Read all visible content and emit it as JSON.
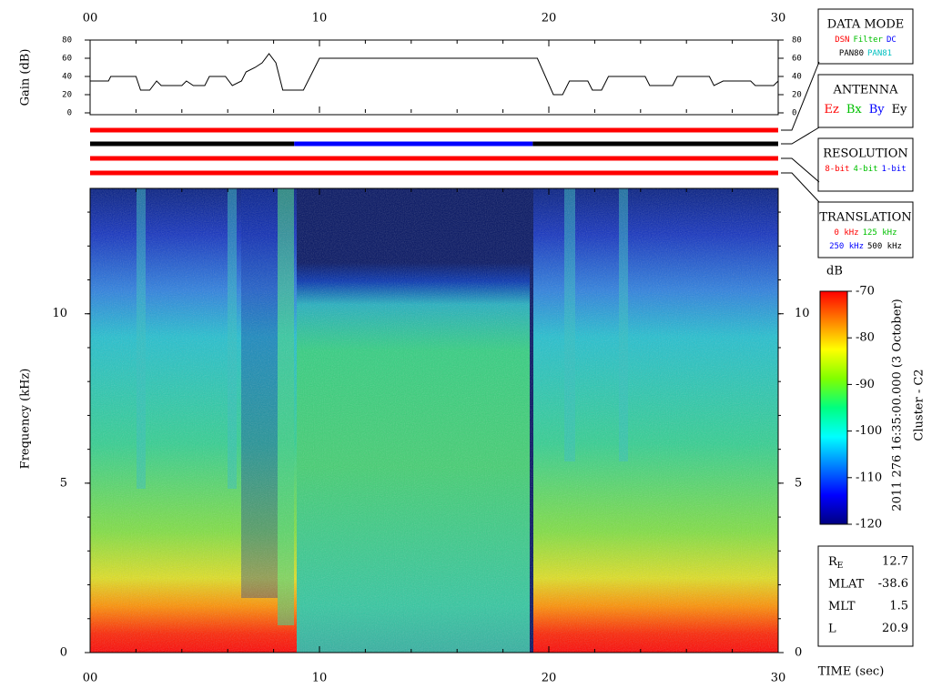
{
  "chart_data": [
    {
      "type": "line",
      "y_label": "Gain (dB)",
      "x": [
        0,
        0.8,
        0.9,
        2.0,
        2.2,
        2.6,
        2.9,
        3.1,
        4.0,
        4.2,
        4.5,
        5.0,
        5.2,
        5.9,
        6.2,
        6.6,
        6.8,
        7.2,
        7.5,
        7.8,
        8.1,
        8.4,
        9.3,
        10.0,
        19.5,
        20.2,
        20.6,
        20.9,
        21.7,
        21.9,
        22.3,
        22.6,
        24.2,
        24.4,
        25.4,
        25.6,
        27.0,
        27.2,
        27.6,
        28.8,
        29.0,
        29.8,
        30.0
      ],
      "series": [
        {
          "color": "#000000",
          "values": [
            35,
            35,
            40,
            40,
            25,
            25,
            35,
            30,
            30,
            35,
            30,
            30,
            40,
            40,
            30,
            35,
            45,
            50,
            55,
            65,
            55,
            25,
            25,
            60,
            60,
            20,
            20,
            35,
            35,
            25,
            25,
            40,
            40,
            30,
            30,
            40,
            40,
            30,
            35,
            35,
            30,
            30,
            35
          ]
        }
      ],
      "xlim": [
        0,
        30
      ],
      "xticks": [
        {
          "value": 0,
          "label": "00"
        },
        10,
        20,
        30
      ],
      "x_minor_step": 2,
      "ylim": [
        0,
        80
      ],
      "yticks": [
        0,
        20,
        40,
        60,
        80
      ]
    },
    {
      "type": "timeline",
      "xlim": [
        0,
        30
      ],
      "bars": [
        {
          "segments": [
            {
              "start": 0,
              "end": 30,
              "color": "#ff0000"
            }
          ]
        },
        {
          "segments": [
            {
              "start": 0,
              "end": 8.9,
              "color": "#000000"
            },
            {
              "start": 8.9,
              "end": 19.3,
              "color": "#0000ff"
            },
            {
              "start": 19.3,
              "end": 30,
              "color": "#000000"
            }
          ]
        },
        {
          "segments": [
            {
              "start": 0,
              "end": 30,
              "color": "#ff0000"
            }
          ]
        },
        {
          "segments": [
            {
              "start": 0,
              "end": 30,
              "color": "#ff0000"
            }
          ]
        }
      ]
    },
    {
      "type": "spectrogram",
      "y_label": "Frequency (kHz)",
      "x_label": "TIME (sec)",
      "xlim": [
        0,
        30
      ],
      "xticks": [
        {
          "value": 0,
          "label": "00"
        },
        10,
        20,
        30
      ],
      "x_minor_step": 2,
      "ylim": [
        0,
        13.7
      ],
      "yticks": [
        0,
        5,
        10
      ],
      "y_minor_step": 1,
      "colorbar": {
        "label": "dB",
        "lim": [
          -120,
          -70
        ],
        "ticks": [
          -70,
          -80,
          -90,
          -100,
          -110,
          -120
        ],
        "colors": [
          "#000080",
          "#0000ff",
          "#0080ff",
          "#00ffff",
          "#00ff80",
          "#80ff00",
          "#ffff00",
          "#ff8000",
          "#ff0000"
        ]
      }
    }
  ],
  "legends": [
    {
      "title": "DATA MODE",
      "rows": [
        [
          {
            "text": "DSN",
            "color": "#ff0000"
          },
          {
            "text": "Filter",
            "color": "#00c000"
          },
          {
            "text": "DC",
            "color": "#0000ff"
          }
        ],
        [
          {
            "text": "PAN80",
            "color": "#000000"
          },
          {
            "text": "PAN81",
            "color": "#00c0c0"
          }
        ]
      ]
    },
    {
      "title": "ANTENNA",
      "rows": [
        [
          {
            "text": "Ez",
            "color": "#ff0000"
          },
          {
            "text": "Bx",
            "color": "#00c000"
          },
          {
            "text": "By",
            "color": "#0000ff"
          },
          {
            "text": "Ey",
            "color": "#000000"
          }
        ]
      ]
    },
    {
      "title": "RESOLUTION",
      "rows": [
        [
          {
            "text": "8-bit",
            "color": "#ff0000"
          },
          {
            "text": "4-bit",
            "color": "#00c000"
          },
          {
            "text": "1-bit",
            "color": "#0000ff"
          }
        ]
      ]
    },
    {
      "title": "TRANSLATION",
      "rows": [
        [
          {
            "text": "0 kHz",
            "color": "#ff0000"
          },
          {
            "text": "125 kHz",
            "color": "#00c000"
          }
        ],
        [
          {
            "text": "250 kHz",
            "color": "#0000ff"
          },
          {
            "text": "500 kHz",
            "color": "#000000"
          }
        ]
      ]
    }
  ],
  "annotation": {
    "time": "2011 276 16:35:00.000 (3 October)",
    "source": "Cluster - C2"
  },
  "info": [
    {
      "label": "R",
      "sub": "E",
      "value": 12.7
    },
    {
      "label": "MLAT",
      "value": -38.6
    },
    {
      "label": "MLT",
      "value": 1.5
    },
    {
      "label": "L",
      "value": 20.9
    }
  ]
}
